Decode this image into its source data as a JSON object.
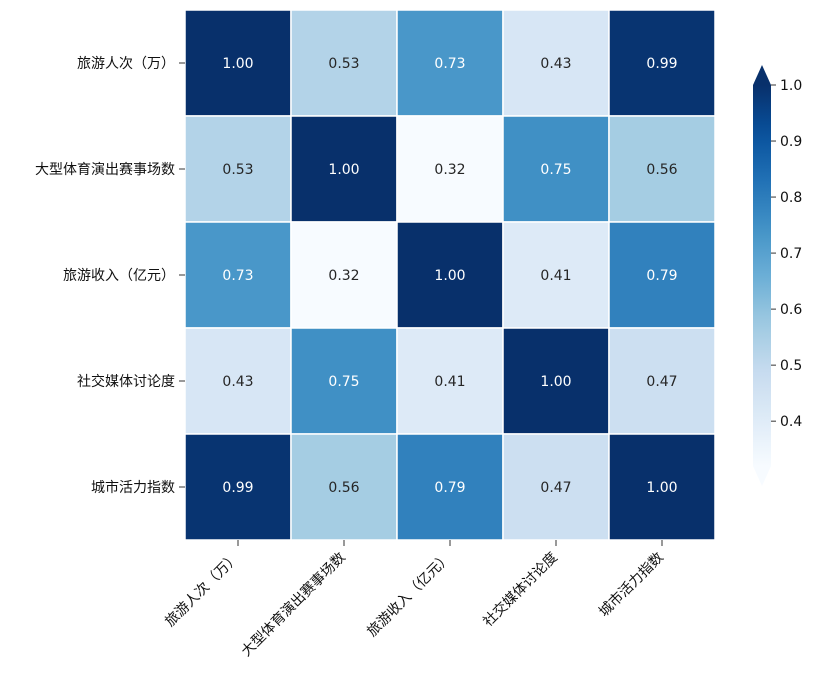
{
  "chart_data": {
    "type": "heatmap",
    "title": "",
    "row_labels": [
      "旅游人次（万）",
      "大型体育演出赛事场数",
      "旅游收入（亿元）",
      "社交媒体讨论度",
      "城市活力指数"
    ],
    "col_labels": [
      "旅游人次（万）",
      "大型体育演出赛事场数",
      "旅游收入（亿元）",
      "社交媒体讨论度",
      "城市活力指数"
    ],
    "values": [
      [
        1.0,
        0.53,
        0.73,
        0.43,
        0.99
      ],
      [
        0.53,
        1.0,
        0.32,
        0.75,
        0.56
      ],
      [
        0.73,
        0.32,
        1.0,
        0.41,
        0.79
      ],
      [
        0.43,
        0.75,
        0.41,
        1.0,
        0.47
      ],
      [
        0.99,
        0.56,
        0.79,
        0.47,
        1.0
      ]
    ],
    "annotation_format": "0.00",
    "colormap": "Blues",
    "color_range": [
      0.32,
      1.0
    ],
    "colorbar": {
      "ticks": [
        0.4,
        0.5,
        0.6,
        0.7,
        0.8,
        0.9,
        1.0
      ],
      "tick_labels": [
        "0.4",
        "0.5",
        "0.6",
        "0.7",
        "0.8",
        "0.9",
        "1.0"
      ],
      "extend": "both",
      "position": "right"
    },
    "cell_border_color": "#ffffff",
    "light_text_color": "#ffffff",
    "dark_text_color": "#262626"
  }
}
